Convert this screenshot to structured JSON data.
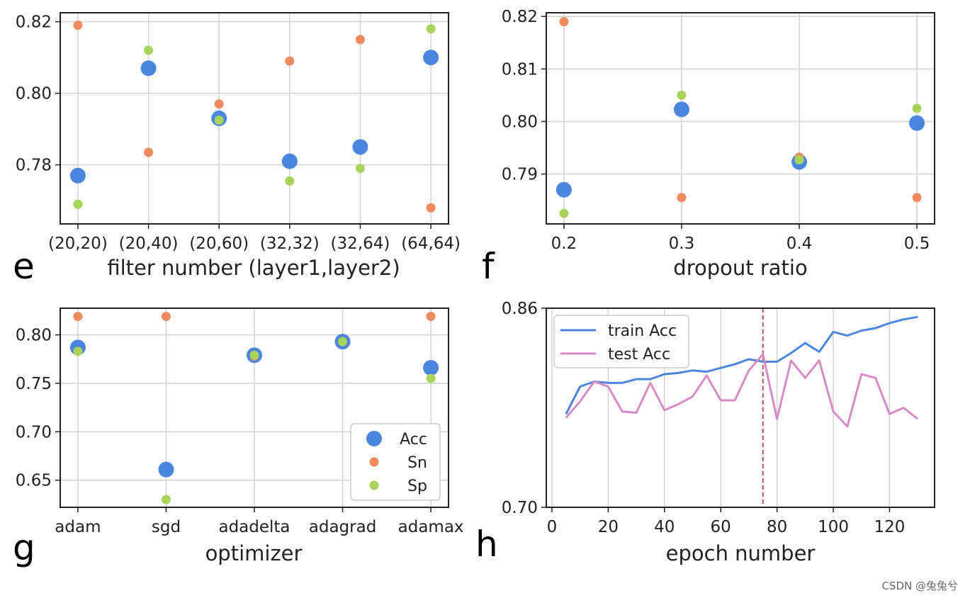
{
  "colors": {
    "acc": "#4a86e0",
    "sn": "#ef8a5e",
    "sp": "#a8d45a",
    "train": "#4a86e0",
    "test": "#d88ac4",
    "vline": "#b04a4a",
    "grid": "#d3d3d3",
    "axis": "#222222"
  },
  "watermark": "CSDN @兔兔兮",
  "chart_data": [
    {
      "id": "e",
      "panel_label": "e",
      "type": "scatter",
      "xlabel": "filter number (layer1,layer2)",
      "categories": [
        "(20,20)",
        "(20,40)",
        "(20,60)",
        "(32,32)",
        "(32,64)",
        "(64,64)"
      ],
      "ylim": [
        0.7635,
        0.8225
      ],
      "yticks": [
        0.78,
        0.8,
        0.82
      ],
      "ytick_labels": [
        "0.78",
        "0.80",
        "0.82"
      ],
      "grid": true,
      "series": [
        {
          "key": "acc",
          "values": [
            0.777,
            0.807,
            0.793,
            0.781,
            0.785,
            0.81
          ]
        },
        {
          "key": "sn",
          "values": [
            0.819,
            0.7835,
            0.797,
            0.809,
            0.815,
            0.768
          ]
        },
        {
          "key": "sp",
          "values": [
            0.769,
            0.812,
            0.7925,
            0.7755,
            0.779,
            0.818
          ]
        }
      ]
    },
    {
      "id": "f",
      "panel_label": "f",
      "type": "scatter",
      "xlabel": "dropout ratio",
      "categories": [
        "0.2",
        "0.3",
        "0.4",
        "0.5"
      ],
      "ylim": [
        0.7805,
        0.8207
      ],
      "yticks": [
        0.79,
        0.8,
        0.81,
        0.82
      ],
      "ytick_labels": [
        "0.79",
        "0.80",
        "0.81",
        "0.82"
      ],
      "grid": true,
      "series": [
        {
          "key": "acc",
          "values": [
            0.787,
            0.8023,
            0.7923,
            0.7997
          ]
        },
        {
          "key": "sn",
          "values": [
            0.819,
            0.7855,
            0.7932,
            0.7855
          ]
        },
        {
          "key": "sp",
          "values": [
            0.7825,
            0.805,
            0.7927,
            0.8025
          ]
        }
      ]
    },
    {
      "id": "g",
      "panel_label": "g",
      "type": "scatter",
      "xlabel": "optimizer",
      "categories": [
        "adam",
        "sgd",
        "adadelta",
        "adagrad",
        "adamax"
      ],
      "ylim": [
        0.622,
        0.8275
      ],
      "yticks": [
        0.65,
        0.7,
        0.75,
        0.8
      ],
      "ytick_labels": [
        "0.65",
        "0.70",
        "0.75",
        "0.80"
      ],
      "grid": true,
      "legend": {
        "position": "lower-right",
        "entries": [
          {
            "key": "acc",
            "label": "Acc"
          },
          {
            "key": "sn",
            "label": "Sn"
          },
          {
            "key": "sp",
            "label": "Sp"
          }
        ]
      },
      "series": [
        {
          "key": "acc",
          "values": [
            0.787,
            0.661,
            0.779,
            0.793,
            0.766
          ]
        },
        {
          "key": "sn",
          "values": [
            0.819,
            0.819,
            0.778,
            0.793,
            0.819
          ]
        },
        {
          "key": "sp",
          "values": [
            0.783,
            0.63,
            0.779,
            0.793,
            0.755
          ]
        }
      ]
    },
    {
      "id": "h",
      "panel_label": "h",
      "type": "line",
      "xlabel": "epoch number",
      "xlim": [
        -2,
        136
      ],
      "xticks": [
        0,
        20,
        40,
        60,
        80,
        100,
        120
      ],
      "ylim": [
        0.7,
        0.86
      ],
      "yticks": [
        0.7,
        0.86
      ],
      "ytick_labels": [
        "0.70",
        "0.86"
      ],
      "grid": true,
      "vline": {
        "x": 75
      },
      "legend": {
        "position": "upper-left",
        "entries": [
          {
            "key": "train",
            "label": "train Acc"
          },
          {
            "key": "test",
            "label": "test Acc"
          }
        ]
      },
      "x": [
        5,
        10,
        15,
        20,
        25,
        30,
        35,
        40,
        45,
        50,
        55,
        60,
        65,
        70,
        75,
        80,
        85,
        90,
        95,
        100,
        105,
        110,
        115,
        120,
        125,
        130
      ],
      "series": [
        {
          "key": "train",
          "values": [
            0.775,
            0.797,
            0.801,
            0.8,
            0.8,
            0.803,
            0.803,
            0.807,
            0.808,
            0.81,
            0.809,
            0.812,
            0.815,
            0.819,
            0.817,
            0.817,
            0.824,
            0.832,
            0.825,
            0.841,
            0.838,
            0.842,
            0.844,
            0.848,
            0.851,
            0.853
          ]
        },
        {
          "key": "test",
          "values": [
            0.772,
            0.785,
            0.801,
            0.797,
            0.777,
            0.776,
            0.8,
            0.778,
            0.783,
            0.789,
            0.806,
            0.786,
            0.786,
            0.81,
            0.823,
            0.771,
            0.818,
            0.804,
            0.818,
            0.777,
            0.765,
            0.807,
            0.804,
            0.775,
            0.78,
            0.771
          ]
        }
      ]
    }
  ]
}
